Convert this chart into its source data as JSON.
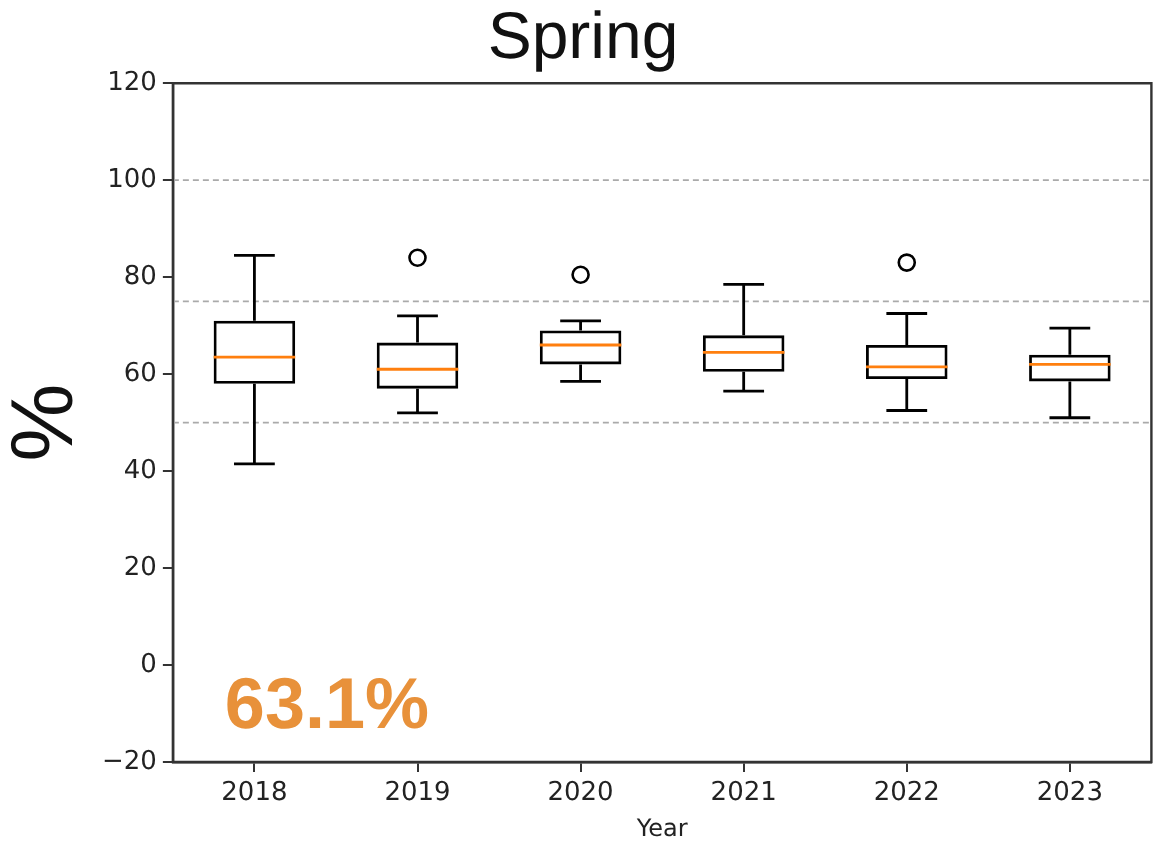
{
  "chart_data": {
    "type": "box",
    "title": "Spring",
    "xlabel": "Year",
    "ylabel": "%",
    "categories": [
      "2018",
      "2019",
      "2020",
      "2021",
      "2022",
      "2023"
    ],
    "series": [
      {
        "color": "#000000",
        "boxes": [
          {
            "low": 41.5,
            "q1": 58,
            "median": 63.5,
            "q3": 71,
            "high": 84.5
          },
          {
            "low": 52,
            "q1": 57,
            "median": 61,
            "q3": 66.5,
            "high": 72,
            "outliers": [
              84
            ]
          },
          {
            "low": 58.5,
            "q1": 62,
            "median": 66,
            "q3": 69,
            "high": 71,
            "outliers": [
              80.5
            ]
          },
          {
            "low": 56.5,
            "q1": 60.5,
            "median": 64.5,
            "q3": 68,
            "high": 78.5
          },
          {
            "low": 52.5,
            "q1": 59,
            "median": 61.5,
            "q3": 66,
            "high": 72.5,
            "outliers": [
              83
            ]
          },
          {
            "low": 51,
            "q1": 58.5,
            "median": 62,
            "q3": 64,
            "high": 69.5
          }
        ]
      }
    ],
    "ylim": [
      -20,
      120
    ],
    "yticks": [
      {
        "value": -20,
        "label": "−20"
      },
      0,
      20,
      40,
      60,
      80,
      100,
      120
    ],
    "ref_lines": [
      {
        "axis": "y",
        "value": 50,
        "color": "#aaaaaa",
        "line_style": "dashed"
      },
      {
        "axis": "y",
        "value": 75,
        "color": "#aaaaaa",
        "line_style": "dashed"
      },
      {
        "axis": "y",
        "value": 100,
        "color": "#aaaaaa",
        "line_style": "dashed"
      }
    ],
    "annotations": [
      "63.1%"
    ]
  }
}
